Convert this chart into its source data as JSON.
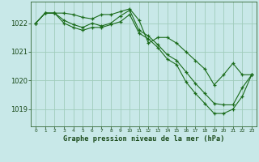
{
  "title": "Graphe pression niveau de la mer (hPa)",
  "background_color": "#c8e8e8",
  "grid_color": "#a0ccbb",
  "line_color": "#1a6b1a",
  "ylim": [
    1018.4,
    1022.75
  ],
  "yticks": [
    1019,
    1020,
    1021,
    1022
  ],
  "series": {
    "line1": [
      1022.0,
      1022.35,
      1022.35,
      1022.35,
      1022.3,
      1022.2,
      1022.15,
      1022.3,
      1022.3,
      1022.4,
      1022.5,
      1022.1,
      1021.3,
      1021.5,
      1021.5,
      1021.3,
      1021.0,
      1020.7,
      1020.4,
      1019.85,
      1020.2,
      1020.6,
      1020.2,
      1020.2
    ],
    "line2": [
      1022.0,
      1022.35,
      1022.35,
      1022.1,
      1021.95,
      1021.85,
      1022.0,
      1021.9,
      1022.0,
      1022.25,
      1022.45,
      1021.75,
      1021.55,
      1021.25,
      1020.9,
      1020.7,
      1020.3,
      1019.9,
      1019.55,
      1019.2,
      1019.15,
      1019.15,
      1019.75,
      1020.2
    ],
    "line3": [
      1022.0,
      1022.35,
      1022.35,
      1022.0,
      1021.85,
      1021.75,
      1021.85,
      1021.85,
      1021.95,
      1022.05,
      1022.3,
      1021.65,
      1021.45,
      1021.15,
      1020.75,
      1020.55,
      1019.95,
      1019.55,
      1019.2,
      1018.85,
      1018.85,
      1019.0,
      1019.45,
      1020.2
    ]
  }
}
